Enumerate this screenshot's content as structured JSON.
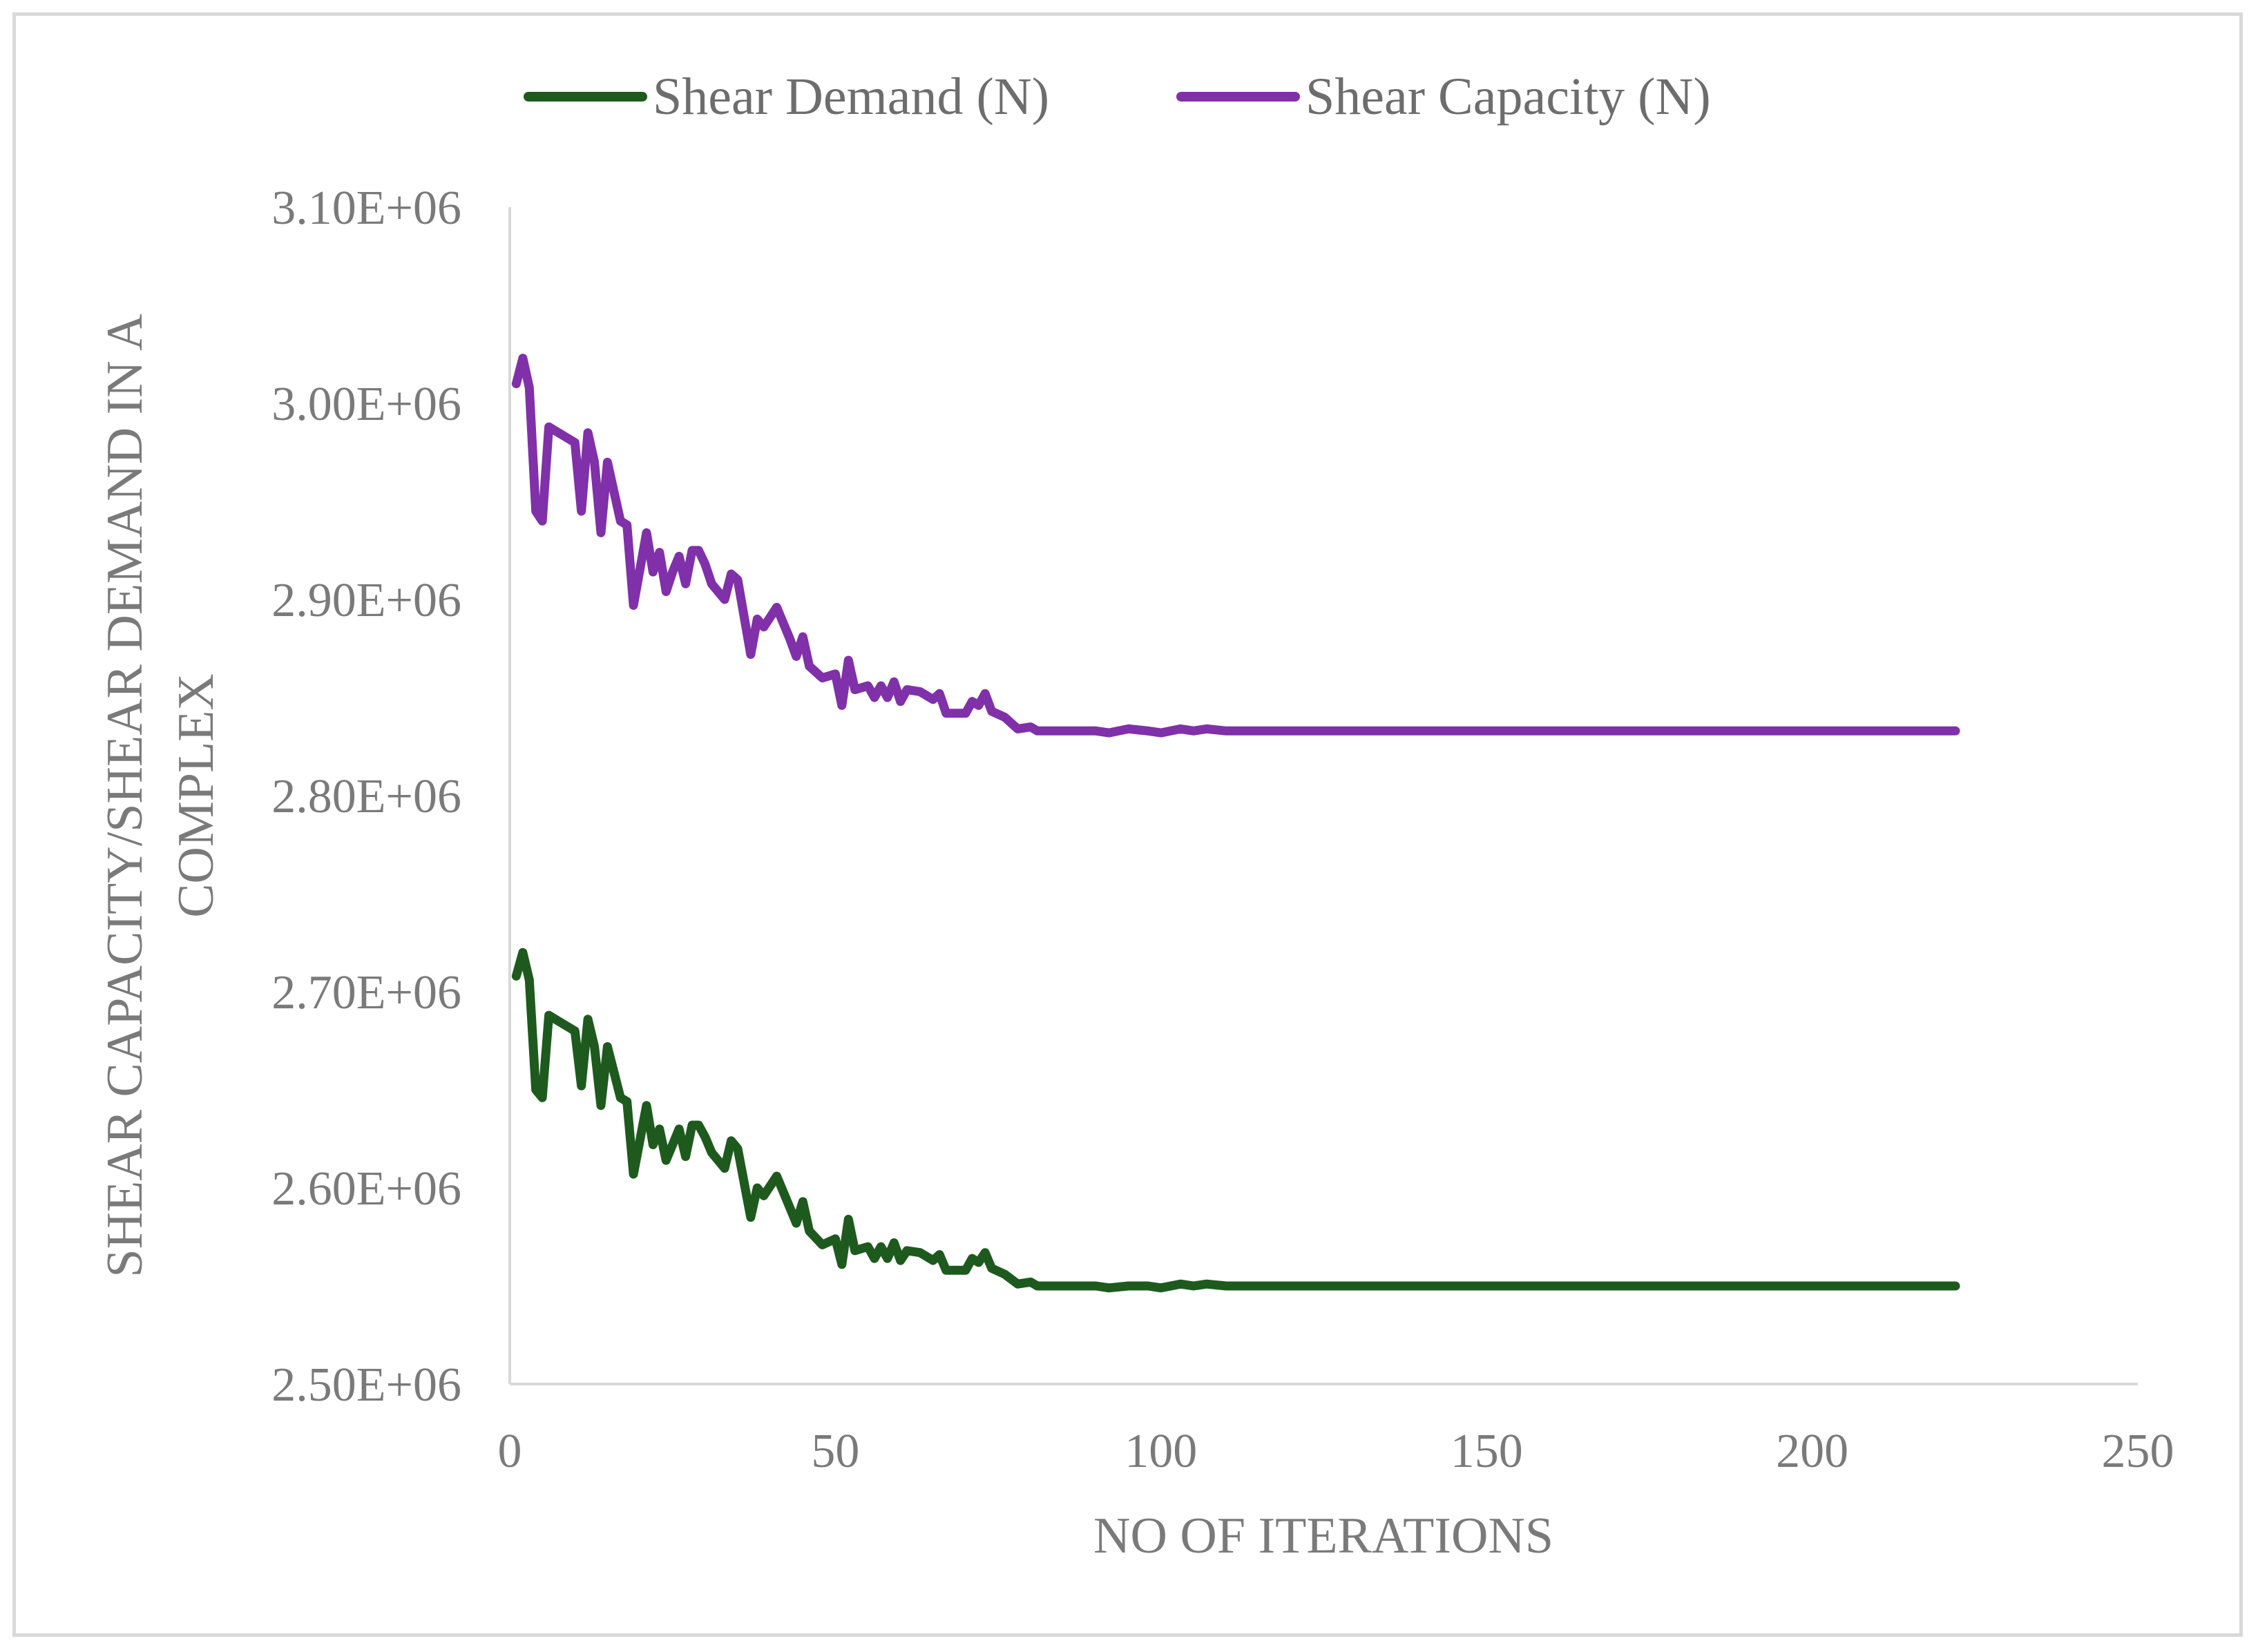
{
  "chart_data": {
    "type": "line",
    "title": "",
    "xlabel": "NO OF ITERATIONS",
    "ylabel_lines": [
      "SHEAR CAPACITY/SHEAR DEMAND IN A",
      "COMPLEX"
    ],
    "xlim": [
      0,
      250
    ],
    "ylim": [
      2500000,
      3100000
    ],
    "x_ticks": [
      0,
      50,
      100,
      150,
      200,
      250
    ],
    "x_tick_labels": [
      "0",
      "50",
      "100",
      "150",
      "200",
      "250"
    ],
    "y_ticks": [
      2500000,
      2600000,
      2700000,
      2800000,
      2900000,
      3000000,
      3100000
    ],
    "y_tick_labels": [
      "2.50E+06",
      "2.60E+06",
      "2.70E+06",
      "2.80E+06",
      "2.90E+06",
      "3.00E+06",
      "3.10E+06"
    ],
    "grid": false,
    "legend_position": "top-center",
    "series": [
      {
        "name": "Shear Demand (N)",
        "color": "#1e5a1e",
        "points": [
          [
            1,
            2708000
          ],
          [
            2,
            2720000
          ],
          [
            3,
            2706000
          ],
          [
            4,
            2650000
          ],
          [
            5,
            2646000
          ],
          [
            6,
            2688000
          ],
          [
            7,
            2686000
          ],
          [
            10,
            2680000
          ],
          [
            11,
            2652000
          ],
          [
            12,
            2686000
          ],
          [
            13,
            2672000
          ],
          [
            14,
            2642000
          ],
          [
            15,
            2672000
          ],
          [
            17,
            2646000
          ],
          [
            18,
            2644000
          ],
          [
            19,
            2607000
          ],
          [
            21,
            2642000
          ],
          [
            22,
            2622000
          ],
          [
            23,
            2630000
          ],
          [
            24,
            2614000
          ],
          [
            25,
            2622000
          ],
          [
            26,
            2630000
          ],
          [
            27,
            2616000
          ],
          [
            28,
            2632000
          ],
          [
            29,
            2632000
          ],
          [
            30,
            2626000
          ],
          [
            31,
            2618000
          ],
          [
            33,
            2610000
          ],
          [
            34,
            2624000
          ],
          [
            35,
            2620000
          ],
          [
            37,
            2585000
          ],
          [
            38,
            2600000
          ],
          [
            39,
            2596000
          ],
          [
            41,
            2606000
          ],
          [
            43,
            2590000
          ],
          [
            44,
            2582000
          ],
          [
            45,
            2593000
          ],
          [
            46,
            2578000
          ],
          [
            48,
            2571000
          ],
          [
            50,
            2574000
          ],
          [
            51,
            2561000
          ],
          [
            52,
            2584000
          ],
          [
            53,
            2568000
          ],
          [
            55,
            2570000
          ],
          [
            56,
            2564000
          ],
          [
            57,
            2570000
          ],
          [
            58,
            2564000
          ],
          [
            59,
            2572000
          ],
          [
            60,
            2563000
          ],
          [
            61,
            2568000
          ],
          [
            63,
            2567000
          ],
          [
            65,
            2563000
          ],
          [
            66,
            2566000
          ],
          [
            67,
            2558000
          ],
          [
            70,
            2558000
          ],
          [
            71,
            2564000
          ],
          [
            72,
            2562000
          ],
          [
            73,
            2567000
          ],
          [
            74,
            2559000
          ],
          [
            76,
            2556000
          ],
          [
            78,
            2551000
          ],
          [
            80,
            2552000
          ],
          [
            81,
            2550000
          ],
          [
            83,
            2550000
          ],
          [
            85,
            2550000
          ],
          [
            90,
            2550000
          ],
          [
            92,
            2549000
          ],
          [
            95,
            2550000
          ],
          [
            98,
            2550000
          ],
          [
            100,
            2549000
          ],
          [
            103,
            2551000
          ],
          [
            105,
            2550000
          ],
          [
            107,
            2551000
          ],
          [
            110,
            2550000
          ],
          [
            150,
            2550000
          ],
          [
            200,
            2550000
          ],
          [
            222,
            2550000
          ]
        ]
      },
      {
        "name": "Shear Capacity (N)",
        "color": "#8030a8",
        "points": [
          [
            1,
            3010000
          ],
          [
            2,
            3023000
          ],
          [
            3,
            3008000
          ],
          [
            4,
            2945000
          ],
          [
            5,
            2940000
          ],
          [
            6,
            2988000
          ],
          [
            7,
            2986000
          ],
          [
            10,
            2980000
          ],
          [
            11,
            2945000
          ],
          [
            12,
            2985000
          ],
          [
            13,
            2970000
          ],
          [
            14,
            2934000
          ],
          [
            15,
            2970000
          ],
          [
            17,
            2940000
          ],
          [
            18,
            2938000
          ],
          [
            19,
            2897000
          ],
          [
            21,
            2934000
          ],
          [
            22,
            2914000
          ],
          [
            23,
            2924000
          ],
          [
            24,
            2904000
          ],
          [
            25,
            2914000
          ],
          [
            26,
            2922000
          ],
          [
            27,
            2908000
          ],
          [
            28,
            2925000
          ],
          [
            29,
            2925000
          ],
          [
            30,
            2918000
          ],
          [
            31,
            2908000
          ],
          [
            33,
            2900000
          ],
          [
            34,
            2913000
          ],
          [
            35,
            2910000
          ],
          [
            37,
            2872000
          ],
          [
            38,
            2890000
          ],
          [
            39,
            2886000
          ],
          [
            41,
            2896000
          ],
          [
            43,
            2880000
          ],
          [
            44,
            2871000
          ],
          [
            45,
            2881000
          ],
          [
            46,
            2866000
          ],
          [
            48,
            2860000
          ],
          [
            50,
            2862000
          ],
          [
            51,
            2846000
          ],
          [
            52,
            2869000
          ],
          [
            53,
            2854000
          ],
          [
            55,
            2856000
          ],
          [
            56,
            2850000
          ],
          [
            57,
            2856000
          ],
          [
            58,
            2850000
          ],
          [
            59,
            2858000
          ],
          [
            60,
            2848000
          ],
          [
            61,
            2854000
          ],
          [
            63,
            2853000
          ],
          [
            65,
            2849000
          ],
          [
            66,
            2852000
          ],
          [
            67,
            2842000
          ],
          [
            70,
            2842000
          ],
          [
            71,
            2848000
          ],
          [
            72,
            2846000
          ],
          [
            73,
            2852000
          ],
          [
            74,
            2843000
          ],
          [
            76,
            2840000
          ],
          [
            78,
            2834000
          ],
          [
            80,
            2835000
          ],
          [
            81,
            2833000
          ],
          [
            83,
            2833000
          ],
          [
            85,
            2833000
          ],
          [
            90,
            2833000
          ],
          [
            92,
            2832000
          ],
          [
            95,
            2834000
          ],
          [
            98,
            2833000
          ],
          [
            100,
            2832000
          ],
          [
            103,
            2834000
          ],
          [
            105,
            2833000
          ],
          [
            107,
            2834000
          ],
          [
            110,
            2833000
          ],
          [
            150,
            2833000
          ],
          [
            200,
            2833000
          ],
          [
            222,
            2833000
          ]
        ]
      }
    ]
  }
}
